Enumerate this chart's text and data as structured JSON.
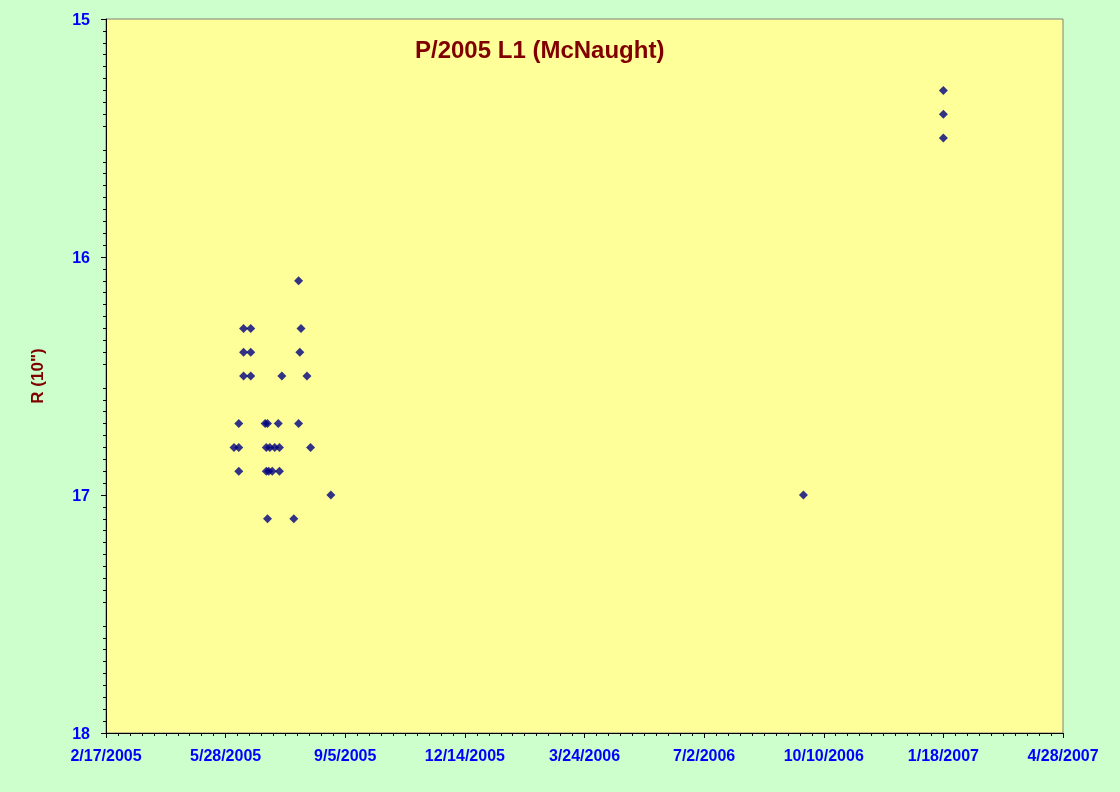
{
  "chart_data": {
    "type": "scatter",
    "title": "P/2005 L1 (McNaught)",
    "ylabel": "R (10\")",
    "marker": "diamond",
    "grid": false,
    "ylim": [
      18,
      15
    ],
    "yticks": [
      15,
      16,
      17,
      18
    ],
    "xlim": [
      "2005-02-17",
      "2007-04-28"
    ],
    "xticks": [
      {
        "value": "2005-02-17",
        "label": "2/17/2005"
      },
      {
        "value": "2005-05-28",
        "label": "5/28/2005"
      },
      {
        "value": "2005-09-05",
        "label": "9/5/2005"
      },
      {
        "value": "2005-12-14",
        "label": "12/14/2005"
      },
      {
        "value": "2006-03-24",
        "label": "3/24/2006"
      },
      {
        "value": "2006-07-02",
        "label": "7/2/2006"
      },
      {
        "value": "2006-10-10",
        "label": "10/10/2006"
      },
      {
        "value": "2007-01-18",
        "label": "1/18/2007"
      },
      {
        "value": "2007-04-28",
        "label": "4/28/2007"
      }
    ],
    "series": [
      {
        "color": "#000080",
        "x": [
          "2005-07-28",
          "2005-06-12",
          "2005-06-18",
          "2005-07-30",
          "2005-06-12",
          "2005-06-18",
          "2005-07-29",
          "2005-06-12",
          "2005-06-18",
          "2005-07-14",
          "2005-08-04",
          "2005-06-08",
          "2005-06-30",
          "2005-07-02",
          "2005-07-11",
          "2005-07-28",
          "2005-06-04",
          "2005-06-08",
          "2005-07-01",
          "2005-07-04",
          "2005-07-08",
          "2005-07-12",
          "2005-08-07",
          "2005-06-08",
          "2005-07-01",
          "2005-07-03",
          "2005-07-06",
          "2005-07-12",
          "2005-08-24",
          "2005-07-02",
          "2005-07-24",
          "2006-09-23",
          "2007-01-18",
          "2007-01-18",
          "2007-01-18"
        ],
        "values": [
          16.1,
          16.3,
          16.3,
          16.3,
          16.4,
          16.4,
          16.4,
          16.5,
          16.5,
          16.5,
          16.5,
          16.7,
          16.7,
          16.7,
          16.7,
          16.7,
          16.8,
          16.8,
          16.8,
          16.8,
          16.8,
          16.8,
          16.8,
          16.9,
          16.9,
          16.9,
          16.9,
          16.9,
          17.0,
          17.1,
          17.1,
          17.0,
          15.3,
          15.4,
          15.5
        ]
      }
    ]
  }
}
